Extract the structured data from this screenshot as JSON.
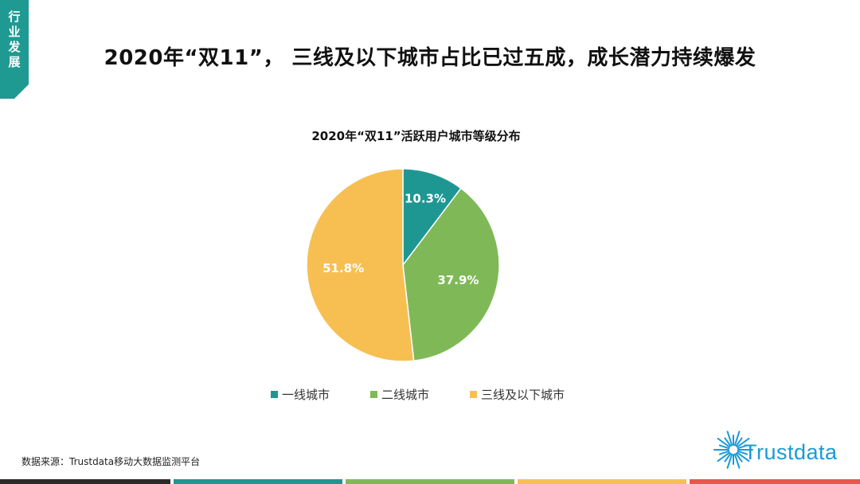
{
  "section_tab": {
    "text": "行业发展",
    "color": "#1f9a92"
  },
  "headline": "2020年“双11”， 三线及以下城市占比已过五成，成长潜力持续爆发",
  "chart_data": {
    "type": "pie",
    "title": "2020年“双11”活跃用户城市等级分布",
    "categories": [
      "一线城市",
      "二线城市",
      "三线及以下城市"
    ],
    "values": [
      10.3,
      37.9,
      51.8
    ],
    "labels": [
      "10.3%",
      "37.9%",
      "51.8%"
    ],
    "colors": [
      "#1e9793",
      "#7fb957",
      "#f7bf52"
    ],
    "legend_position": "bottom"
  },
  "source": "数据来源：Trustdata移动大数据监测平台",
  "logo": {
    "text": "Trustdata",
    "color": "#1a9ad6"
  },
  "footer_colors": [
    "#2b2b2b",
    "#1e9793",
    "#7fb957",
    "#f7bf52",
    "#e8574a"
  ]
}
